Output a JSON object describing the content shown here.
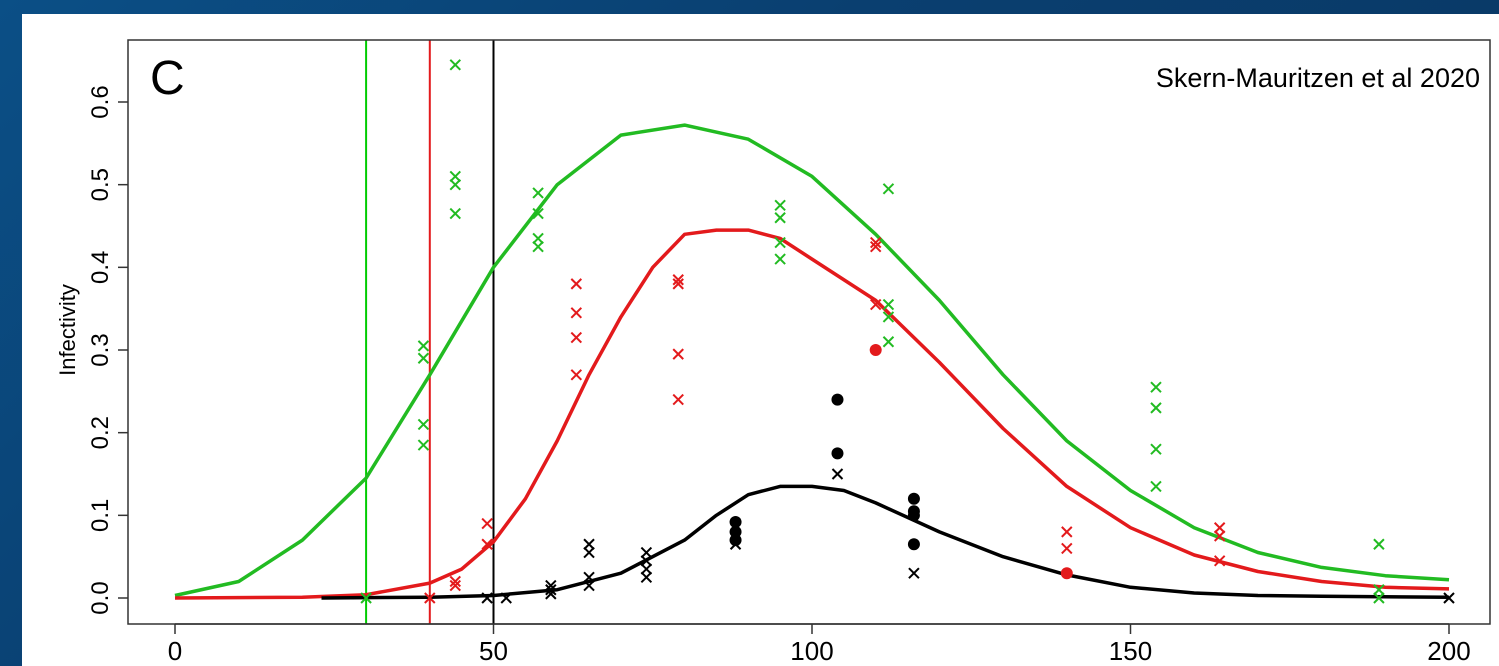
{
  "chart_data": {
    "type": "scatter",
    "panel_label": "C",
    "annotation": "Skern-Mauritzen et al 2020",
    "ylabel": "Infectivity",
    "xlabel": "",
    "xlim": [
      0,
      200
    ],
    "ylim": [
      0.0,
      0.6
    ],
    "x_ticks": [
      0,
      50,
      100,
      150,
      200
    ],
    "y_ticks": [
      0.0,
      0.1,
      0.2,
      0.3,
      0.4,
      0.5,
      0.6
    ],
    "vertical_lines": [
      {
        "x": 30,
        "color": "#00cc00"
      },
      {
        "x": 40,
        "color": "#e31a1c"
      },
      {
        "x": 50,
        "color": "#000000"
      }
    ],
    "series": [
      {
        "color": "#22bb22",
        "curve": [
          [
            0,
            0.003
          ],
          [
            10,
            0.02
          ],
          [
            20,
            0.07
          ],
          [
            30,
            0.145
          ],
          [
            40,
            0.27
          ],
          [
            50,
            0.4
          ],
          [
            60,
            0.5
          ],
          [
            70,
            0.56
          ],
          [
            80,
            0.572
          ],
          [
            90,
            0.555
          ],
          [
            100,
            0.51
          ],
          [
            110,
            0.44
          ],
          [
            120,
            0.36
          ],
          [
            130,
            0.27
          ],
          [
            140,
            0.19
          ],
          [
            150,
            0.13
          ],
          [
            160,
            0.085
          ],
          [
            170,
            0.055
          ],
          [
            180,
            0.037
          ],
          [
            190,
            0.027
          ],
          [
            200,
            0.022
          ]
        ],
        "points": [
          [
            30,
            0.0
          ],
          [
            39,
            0.21
          ],
          [
            39,
            0.185
          ],
          [
            39,
            0.305
          ],
          [
            39,
            0.29
          ],
          [
            44,
            0.645
          ],
          [
            44,
            0.51
          ],
          [
            44,
            0.5
          ],
          [
            44,
            0.465
          ],
          [
            57,
            0.49
          ],
          [
            57,
            0.465
          ],
          [
            57,
            0.435
          ],
          [
            57,
            0.425
          ],
          [
            95,
            0.475
          ],
          [
            95,
            0.46
          ],
          [
            95,
            0.43
          ],
          [
            95,
            0.41
          ],
          [
            112,
            0.495
          ],
          [
            112,
            0.355
          ],
          [
            112,
            0.34
          ],
          [
            112,
            0.31
          ],
          [
            154,
            0.255
          ],
          [
            154,
            0.23
          ],
          [
            154,
            0.18
          ],
          [
            154,
            0.135
          ],
          [
            189,
            0.065
          ],
          [
            189,
            0.01
          ],
          [
            189,
            0.0
          ]
        ],
        "filled_points": []
      },
      {
        "color": "#e31a1c",
        "curve": [
          [
            0,
            0.0
          ],
          [
            20,
            0.001
          ],
          [
            30,
            0.004
          ],
          [
            40,
            0.018
          ],
          [
            45,
            0.035
          ],
          [
            50,
            0.068
          ],
          [
            55,
            0.12
          ],
          [
            60,
            0.19
          ],
          [
            65,
            0.27
          ],
          [
            70,
            0.34
          ],
          [
            75,
            0.4
          ],
          [
            80,
            0.44
          ],
          [
            85,
            0.445
          ],
          [
            90,
            0.445
          ],
          [
            95,
            0.435
          ],
          [
            100,
            0.41
          ],
          [
            110,
            0.36
          ],
          [
            120,
            0.285
          ],
          [
            130,
            0.205
          ],
          [
            140,
            0.135
          ],
          [
            150,
            0.085
          ],
          [
            160,
            0.052
          ],
          [
            170,
            0.032
          ],
          [
            180,
            0.02
          ],
          [
            190,
            0.013
          ],
          [
            200,
            0.011
          ]
        ],
        "points": [
          [
            40,
            0.0
          ],
          [
            44,
            0.02
          ],
          [
            44,
            0.015
          ],
          [
            49,
            0.09
          ],
          [
            49,
            0.065
          ],
          [
            63,
            0.38
          ],
          [
            63,
            0.345
          ],
          [
            63,
            0.315
          ],
          [
            63,
            0.27
          ],
          [
            79,
            0.385
          ],
          [
            79,
            0.38
          ],
          [
            79,
            0.295
          ],
          [
            79,
            0.24
          ],
          [
            110,
            0.43
          ],
          [
            110,
            0.425
          ],
          [
            110,
            0.355
          ],
          [
            140,
            0.08
          ],
          [
            140,
            0.06
          ],
          [
            164,
            0.085
          ],
          [
            164,
            0.075
          ],
          [
            164,
            0.045
          ]
        ],
        "filled_points": [
          [
            110,
            0.3
          ],
          [
            140,
            0.03
          ]
        ]
      },
      {
        "color": "#000000",
        "curve": [
          [
            23,
            0.0
          ],
          [
            40,
            0.001
          ],
          [
            50,
            0.003
          ],
          [
            60,
            0.01
          ],
          [
            70,
            0.03
          ],
          [
            80,
            0.07
          ],
          [
            85,
            0.1
          ],
          [
            90,
            0.125
          ],
          [
            95,
            0.135
          ],
          [
            100,
            0.135
          ],
          [
            105,
            0.13
          ],
          [
            110,
            0.115
          ],
          [
            120,
            0.08
          ],
          [
            130,
            0.05
          ],
          [
            140,
            0.028
          ],
          [
            150,
            0.013
          ],
          [
            160,
            0.006
          ],
          [
            170,
            0.003
          ],
          [
            180,
            0.002
          ],
          [
            200,
            0.001
          ]
        ],
        "points": [
          [
            49,
            0.0
          ],
          [
            52,
            0.0
          ],
          [
            59,
            0.015
          ],
          [
            59,
            0.01
          ],
          [
            59,
            0.005
          ],
          [
            65,
            0.065
          ],
          [
            65,
            0.055
          ],
          [
            65,
            0.025
          ],
          [
            65,
            0.015
          ],
          [
            74,
            0.055
          ],
          [
            74,
            0.045
          ],
          [
            74,
            0.035
          ],
          [
            74,
            0.025
          ],
          [
            88,
            0.085
          ],
          [
            88,
            0.075
          ],
          [
            88,
            0.065
          ],
          [
            104,
            0.15
          ],
          [
            116,
            0.03
          ],
          [
            200,
            0.0
          ]
        ],
        "filled_points": [
          [
            88,
            0.092
          ],
          [
            88,
            0.08
          ],
          [
            88,
            0.07
          ],
          [
            104,
            0.24
          ],
          [
            104,
            0.175
          ],
          [
            116,
            0.12
          ],
          [
            116,
            0.105
          ],
          [
            116,
            0.1
          ],
          [
            116,
            0.065
          ]
        ]
      }
    ]
  }
}
